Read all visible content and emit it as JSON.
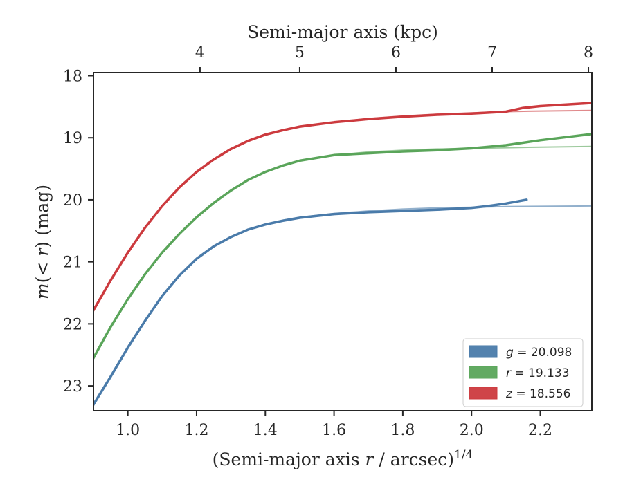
{
  "chart_data": {
    "type": "line",
    "xlabel_main": "(Semi-major axis ",
    "xlabel_var": "r",
    "xlabel_tail": " / arcsec)",
    "xlabel_exp": "1/4",
    "ylabel_main": "m",
    "ylabel_paren": "(",
    "ylabel_var": "< r",
    "ylabel_close": ")",
    "ylabel_unit": " (mag)",
    "top_xlabel": "Semi-major axis (kpc)",
    "xlim": [
      0.9,
      2.35
    ],
    "ylim": [
      23.4,
      17.95
    ],
    "y_inverted": true,
    "x_ticks": [
      1.0,
      1.2,
      1.4,
      1.6,
      1.8,
      2.0,
      2.2
    ],
    "x_tick_labels": [
      "1.0",
      "1.2",
      "1.4",
      "1.6",
      "1.8",
      "2.0",
      "2.2"
    ],
    "y_ticks": [
      18,
      19,
      20,
      21,
      22,
      23
    ],
    "y_tick_labels": [
      "18",
      "19",
      "20",
      "21",
      "22",
      "23"
    ],
    "top_ticks_x": [
      1.21,
      1.5,
      1.78,
      2.06,
      2.34
    ],
    "top_tick_labels": [
      "4",
      "5",
      "6",
      "7",
      "8"
    ],
    "legend_position": "lower-right",
    "grid": false,
    "series": [
      {
        "name": "g = 20.098",
        "legend_var": "g",
        "legend_val": " = 20.098",
        "color": "#4a7baa",
        "x": [
          0.9,
          0.95,
          1.0,
          1.05,
          1.1,
          1.15,
          1.2,
          1.25,
          1.3,
          1.35,
          1.4,
          1.45,
          1.5,
          1.55,
          1.6,
          1.7,
          1.8,
          1.9,
          2.0,
          2.05,
          2.1,
          2.16
        ],
        "y": [
          23.3,
          22.85,
          22.38,
          21.95,
          21.55,
          21.22,
          20.95,
          20.75,
          20.6,
          20.48,
          20.4,
          20.34,
          20.29,
          20.26,
          20.23,
          20.2,
          20.18,
          20.16,
          20.13,
          20.1,
          20.06,
          20.0
        ],
        "model_x": [
          0.9,
          0.95,
          1.0,
          1.05,
          1.1,
          1.15,
          1.2,
          1.25,
          1.3,
          1.35,
          1.4,
          1.45,
          1.5,
          1.6,
          1.7,
          1.8,
          1.9,
          2.0,
          2.1,
          2.2,
          2.35
        ],
        "model_y": [
          23.32,
          22.87,
          22.4,
          21.96,
          21.56,
          21.23,
          20.96,
          20.76,
          20.6,
          20.48,
          20.39,
          20.33,
          20.28,
          20.22,
          20.18,
          20.15,
          20.13,
          20.12,
          20.11,
          20.105,
          20.1
        ]
      },
      {
        "name": "r = 19.133",
        "legend_var": "r",
        "legend_val": " = 19.133",
        "color": "#5aa55a",
        "x": [
          0.9,
          0.95,
          1.0,
          1.05,
          1.1,
          1.15,
          1.2,
          1.25,
          1.3,
          1.35,
          1.4,
          1.45,
          1.5,
          1.6,
          1.7,
          1.8,
          1.9,
          2.0,
          2.1,
          2.2,
          2.35
        ],
        "y": [
          22.55,
          22.05,
          21.6,
          21.2,
          20.85,
          20.55,
          20.28,
          20.05,
          19.85,
          19.68,
          19.55,
          19.45,
          19.37,
          19.28,
          19.25,
          19.22,
          19.2,
          19.17,
          19.12,
          19.04,
          18.94
        ],
        "model_x": [
          0.9,
          0.95,
          1.0,
          1.05,
          1.1,
          1.15,
          1.2,
          1.25,
          1.3,
          1.35,
          1.4,
          1.45,
          1.5,
          1.6,
          1.7,
          1.8,
          1.9,
          2.0,
          2.1,
          2.2,
          2.35
        ],
        "model_y": [
          22.57,
          22.06,
          21.61,
          21.21,
          20.85,
          20.55,
          20.28,
          20.05,
          19.85,
          19.68,
          19.55,
          19.45,
          19.37,
          19.28,
          19.23,
          19.2,
          19.18,
          19.17,
          19.16,
          19.15,
          19.14
        ]
      },
      {
        "name": "z = 18.556",
        "legend_var": "z",
        "legend_val": " = 18.556",
        "color": "#cc3a3e",
        "x": [
          0.9,
          0.95,
          1.0,
          1.05,
          1.1,
          1.15,
          1.2,
          1.25,
          1.3,
          1.35,
          1.4,
          1.45,
          1.5,
          1.6,
          1.7,
          1.8,
          1.9,
          2.0,
          2.1,
          2.15,
          2.2,
          2.35
        ],
        "y": [
          21.78,
          21.3,
          20.85,
          20.45,
          20.1,
          19.8,
          19.55,
          19.35,
          19.18,
          19.05,
          18.95,
          18.88,
          18.82,
          18.75,
          18.7,
          18.66,
          18.63,
          18.61,
          18.58,
          18.52,
          18.49,
          18.44
        ],
        "model_x": [
          0.9,
          0.95,
          1.0,
          1.05,
          1.1,
          1.15,
          1.2,
          1.25,
          1.3,
          1.35,
          1.4,
          1.45,
          1.5,
          1.6,
          1.7,
          1.8,
          1.9,
          2.0,
          2.1,
          2.2,
          2.35
        ],
        "model_y": [
          21.8,
          21.31,
          20.86,
          20.46,
          20.11,
          19.81,
          19.56,
          19.36,
          19.19,
          19.06,
          18.96,
          18.89,
          18.83,
          18.75,
          18.69,
          18.65,
          18.62,
          18.6,
          18.58,
          18.57,
          18.56
        ]
      }
    ]
  }
}
